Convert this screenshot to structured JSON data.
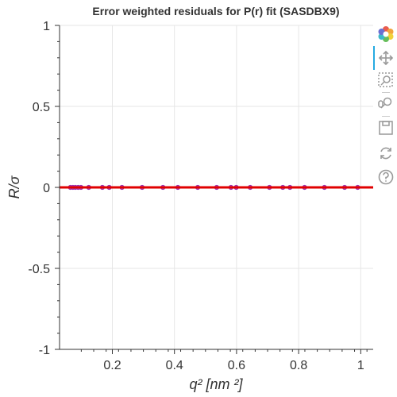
{
  "chart_data": {
    "type": "scatter",
    "title": "Error weighted residuals for P(r) fit (SASDBX9)",
    "xlabel": "q² [nm ²]",
    "ylabel": "R/σ",
    "xlim": [
      0.03,
      1.04
    ],
    "ylim": [
      -1,
      1
    ],
    "x_ticks": [
      0.2,
      0.4,
      0.6,
      0.8,
      1
    ],
    "x_tick_labels": [
      "0.2",
      "0.4",
      "0.6",
      "0.8",
      "1"
    ],
    "y_ticks": [
      1,
      0.5,
      0,
      -0.5,
      -1
    ],
    "y_tick_labels": [
      "1",
      "0.5",
      "0",
      "-0.5",
      "-1"
    ],
    "grid": true,
    "reference_line": {
      "y": 0,
      "color": "#e00000"
    },
    "series": [
      {
        "marker_color": "#9b2fae",
        "x": [
          0.065,
          0.073,
          0.081,
          0.09,
          0.099,
          0.124,
          0.168,
          0.19,
          0.231,
          0.296,
          0.363,
          0.411,
          0.475,
          0.536,
          0.582,
          0.599,
          0.644,
          0.706,
          0.749,
          0.772,
          0.819,
          0.883,
          0.948,
          0.99
        ],
        "y": [
          0,
          0,
          0,
          0,
          0,
          0,
          0,
          0,
          0,
          0,
          0,
          0,
          0,
          0,
          0,
          0,
          0,
          0,
          0,
          0,
          0,
          0,
          0,
          0
        ]
      }
    ]
  },
  "toolbar": {
    "tools": [
      "bokeh-logo-icon",
      "pan-icon",
      "box-zoom-icon",
      "wheel-zoom-icon",
      "save-icon",
      "reset-icon",
      "help-icon"
    ]
  }
}
